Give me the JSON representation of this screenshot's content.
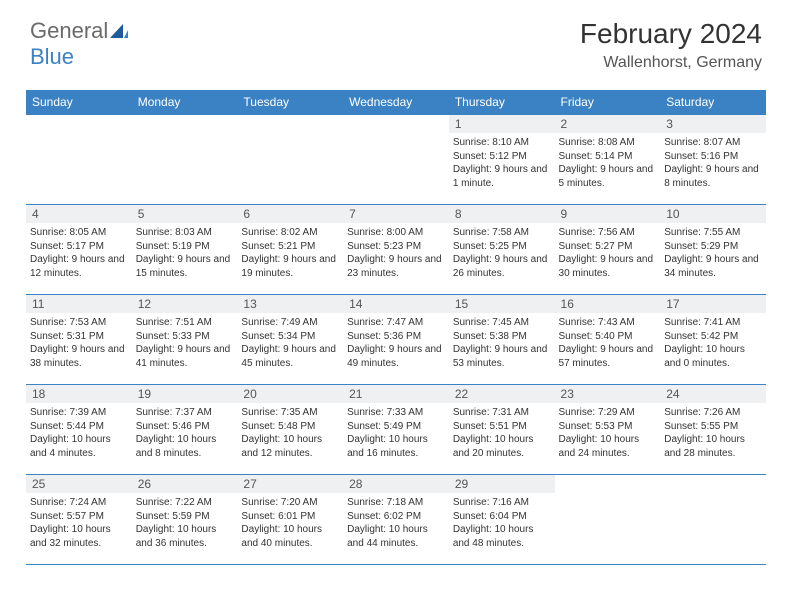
{
  "logo": {
    "general": "General",
    "blue": "Blue"
  },
  "title": "February 2024",
  "location": "Wallenhorst, Germany",
  "colors": {
    "header_bg": "#3b82c4",
    "daynum_bg": "#eef0f2",
    "border": "#3b82c4",
    "text": "#333333"
  },
  "day_headers": [
    "Sunday",
    "Monday",
    "Tuesday",
    "Wednesday",
    "Thursday",
    "Friday",
    "Saturday"
  ],
  "weeks": [
    [
      {
        "n": "",
        "sr": "",
        "ss": "",
        "dl": ""
      },
      {
        "n": "",
        "sr": "",
        "ss": "",
        "dl": ""
      },
      {
        "n": "",
        "sr": "",
        "ss": "",
        "dl": ""
      },
      {
        "n": "",
        "sr": "",
        "ss": "",
        "dl": ""
      },
      {
        "n": "1",
        "sr": "Sunrise: 8:10 AM",
        "ss": "Sunset: 5:12 PM",
        "dl": "Daylight: 9 hours and 1 minute."
      },
      {
        "n": "2",
        "sr": "Sunrise: 8:08 AM",
        "ss": "Sunset: 5:14 PM",
        "dl": "Daylight: 9 hours and 5 minutes."
      },
      {
        "n": "3",
        "sr": "Sunrise: 8:07 AM",
        "ss": "Sunset: 5:16 PM",
        "dl": "Daylight: 9 hours and 8 minutes."
      }
    ],
    [
      {
        "n": "4",
        "sr": "Sunrise: 8:05 AM",
        "ss": "Sunset: 5:17 PM",
        "dl": "Daylight: 9 hours and 12 minutes."
      },
      {
        "n": "5",
        "sr": "Sunrise: 8:03 AM",
        "ss": "Sunset: 5:19 PM",
        "dl": "Daylight: 9 hours and 15 minutes."
      },
      {
        "n": "6",
        "sr": "Sunrise: 8:02 AM",
        "ss": "Sunset: 5:21 PM",
        "dl": "Daylight: 9 hours and 19 minutes."
      },
      {
        "n": "7",
        "sr": "Sunrise: 8:00 AM",
        "ss": "Sunset: 5:23 PM",
        "dl": "Daylight: 9 hours and 23 minutes."
      },
      {
        "n": "8",
        "sr": "Sunrise: 7:58 AM",
        "ss": "Sunset: 5:25 PM",
        "dl": "Daylight: 9 hours and 26 minutes."
      },
      {
        "n": "9",
        "sr": "Sunrise: 7:56 AM",
        "ss": "Sunset: 5:27 PM",
        "dl": "Daylight: 9 hours and 30 minutes."
      },
      {
        "n": "10",
        "sr": "Sunrise: 7:55 AM",
        "ss": "Sunset: 5:29 PM",
        "dl": "Daylight: 9 hours and 34 minutes."
      }
    ],
    [
      {
        "n": "11",
        "sr": "Sunrise: 7:53 AM",
        "ss": "Sunset: 5:31 PM",
        "dl": "Daylight: 9 hours and 38 minutes."
      },
      {
        "n": "12",
        "sr": "Sunrise: 7:51 AM",
        "ss": "Sunset: 5:33 PM",
        "dl": "Daylight: 9 hours and 41 minutes."
      },
      {
        "n": "13",
        "sr": "Sunrise: 7:49 AM",
        "ss": "Sunset: 5:34 PM",
        "dl": "Daylight: 9 hours and 45 minutes."
      },
      {
        "n": "14",
        "sr": "Sunrise: 7:47 AM",
        "ss": "Sunset: 5:36 PM",
        "dl": "Daylight: 9 hours and 49 minutes."
      },
      {
        "n": "15",
        "sr": "Sunrise: 7:45 AM",
        "ss": "Sunset: 5:38 PM",
        "dl": "Daylight: 9 hours and 53 minutes."
      },
      {
        "n": "16",
        "sr": "Sunrise: 7:43 AM",
        "ss": "Sunset: 5:40 PM",
        "dl": "Daylight: 9 hours and 57 minutes."
      },
      {
        "n": "17",
        "sr": "Sunrise: 7:41 AM",
        "ss": "Sunset: 5:42 PM",
        "dl": "Daylight: 10 hours and 0 minutes."
      }
    ],
    [
      {
        "n": "18",
        "sr": "Sunrise: 7:39 AM",
        "ss": "Sunset: 5:44 PM",
        "dl": "Daylight: 10 hours and 4 minutes."
      },
      {
        "n": "19",
        "sr": "Sunrise: 7:37 AM",
        "ss": "Sunset: 5:46 PM",
        "dl": "Daylight: 10 hours and 8 minutes."
      },
      {
        "n": "20",
        "sr": "Sunrise: 7:35 AM",
        "ss": "Sunset: 5:48 PM",
        "dl": "Daylight: 10 hours and 12 minutes."
      },
      {
        "n": "21",
        "sr": "Sunrise: 7:33 AM",
        "ss": "Sunset: 5:49 PM",
        "dl": "Daylight: 10 hours and 16 minutes."
      },
      {
        "n": "22",
        "sr": "Sunrise: 7:31 AM",
        "ss": "Sunset: 5:51 PM",
        "dl": "Daylight: 10 hours and 20 minutes."
      },
      {
        "n": "23",
        "sr": "Sunrise: 7:29 AM",
        "ss": "Sunset: 5:53 PM",
        "dl": "Daylight: 10 hours and 24 minutes."
      },
      {
        "n": "24",
        "sr": "Sunrise: 7:26 AM",
        "ss": "Sunset: 5:55 PM",
        "dl": "Daylight: 10 hours and 28 minutes."
      }
    ],
    [
      {
        "n": "25",
        "sr": "Sunrise: 7:24 AM",
        "ss": "Sunset: 5:57 PM",
        "dl": "Daylight: 10 hours and 32 minutes."
      },
      {
        "n": "26",
        "sr": "Sunrise: 7:22 AM",
        "ss": "Sunset: 5:59 PM",
        "dl": "Daylight: 10 hours and 36 minutes."
      },
      {
        "n": "27",
        "sr": "Sunrise: 7:20 AM",
        "ss": "Sunset: 6:01 PM",
        "dl": "Daylight: 10 hours and 40 minutes."
      },
      {
        "n": "28",
        "sr": "Sunrise: 7:18 AM",
        "ss": "Sunset: 6:02 PM",
        "dl": "Daylight: 10 hours and 44 minutes."
      },
      {
        "n": "29",
        "sr": "Sunrise: 7:16 AM",
        "ss": "Sunset: 6:04 PM",
        "dl": "Daylight: 10 hours and 48 minutes."
      },
      {
        "n": "",
        "sr": "",
        "ss": "",
        "dl": ""
      },
      {
        "n": "",
        "sr": "",
        "ss": "",
        "dl": ""
      }
    ]
  ]
}
